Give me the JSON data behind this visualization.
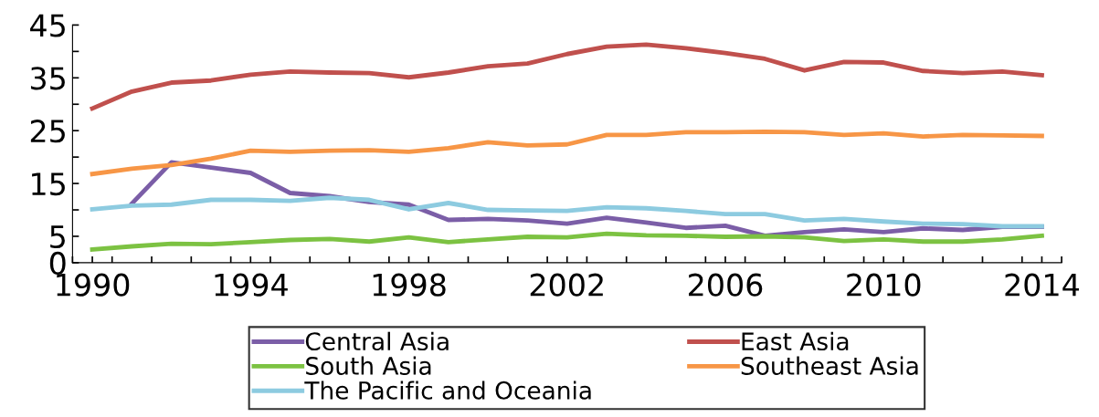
{
  "chart_data": {
    "type": "line",
    "x": [
      1990,
      1991,
      1992,
      1993,
      1994,
      1995,
      1996,
      1997,
      1998,
      1999,
      2000,
      2001,
      2002,
      2003,
      2004,
      2005,
      2006,
      2007,
      2008,
      2009,
      2010,
      2011,
      2012,
      2013,
      2014
    ],
    "series": [
      {
        "name": "Central Asia",
        "color": "#7b5ea7",
        "values": [
          null,
          11.2,
          19.0,
          18.0,
          17.0,
          13.2,
          12.6,
          11.5,
          11.0,
          8.1,
          8.3,
          8.0,
          7.4,
          8.5,
          7.6,
          6.6,
          7.0,
          5.1,
          5.8,
          6.3,
          5.8,
          6.5,
          6.2,
          6.8,
          6.8
        ]
      },
      {
        "name": "East Asia",
        "color": "#c0504d",
        "values": [
          29.2,
          32.4,
          34.1,
          34.5,
          35.6,
          36.2,
          36.0,
          35.9,
          35.1,
          36.0,
          37.2,
          37.7,
          39.5,
          40.9,
          41.3,
          40.6,
          39.7,
          38.6,
          36.4,
          38.0,
          37.9,
          36.3,
          35.9,
          36.2,
          35.5
        ]
      },
      {
        "name": "South Asia",
        "color": "#7cc242",
        "values": [
          2.5,
          3.1,
          3.6,
          3.5,
          3.9,
          4.3,
          4.5,
          4.0,
          4.8,
          3.9,
          4.4,
          4.9,
          4.8,
          5.5,
          5.2,
          5.1,
          4.9,
          5.0,
          4.8,
          4.1,
          4.4,
          4.0,
          4.0,
          4.4,
          5.1
        ]
      },
      {
        "name": "Southeast Asia",
        "color": "#f79646",
        "values": [
          16.8,
          17.8,
          18.5,
          19.7,
          21.2,
          21.0,
          21.2,
          21.3,
          21.0,
          21.7,
          22.8,
          22.2,
          22.4,
          24.2,
          24.2,
          24.7,
          24.7,
          24.8,
          24.7,
          24.2,
          24.5,
          23.9,
          24.2,
          24.1,
          24.0
        ]
      },
      {
        "name": "The Pacific and Oceania",
        "color": "#8dcbe0",
        "values": [
          10.1,
          10.8,
          11.0,
          11.9,
          11.9,
          11.7,
          12.3,
          11.9,
          10.1,
          11.3,
          10.0,
          9.9,
          9.8,
          10.5,
          10.3,
          9.8,
          9.2,
          9.2,
          8.0,
          8.3,
          7.8,
          7.4,
          7.3,
          6.9,
          6.9
        ]
      }
    ],
    "xlim": [
      1989.5,
      2014.5
    ],
    "xticks": [
      {
        "value": 1989.5,
        "label": null
      },
      1990,
      {
        "value": 1990.5,
        "label": null
      },
      {
        "value": 1991.5,
        "label": null
      },
      {
        "value": 1992.5,
        "label": null
      },
      {
        "value": 1993.5,
        "label": null
      },
      1994,
      {
        "value": 1994.5,
        "label": null
      },
      {
        "value": 1995.5,
        "label": null
      },
      {
        "value": 1996.5,
        "label": null
      },
      {
        "value": 1997.5,
        "label": null
      },
      1998,
      {
        "value": 1998.5,
        "label": null
      },
      {
        "value": 1999.5,
        "label": null
      },
      {
        "value": 2000.5,
        "label": null
      },
      {
        "value": 2001.5,
        "label": null
      },
      2002,
      {
        "value": 2002.5,
        "label": null
      },
      {
        "value": 2003.5,
        "label": null
      },
      {
        "value": 2004.5,
        "label": null
      },
      {
        "value": 2005.5,
        "label": null
      },
      2006,
      {
        "value": 2006.5,
        "label": null
      },
      {
        "value": 2007.5,
        "label": null
      },
      {
        "value": 2008.5,
        "label": null
      },
      {
        "value": 2009.5,
        "label": null
      },
      2010,
      {
        "value": 2010.5,
        "label": null
      },
      {
        "value": 2011.5,
        "label": null
      },
      {
        "value": 2012.5,
        "label": null
      },
      {
        "value": 2013.5,
        "label": null
      },
      2014,
      {
        "value": 2014.5,
        "label": null
      }
    ],
    "ylim": [
      0,
      45
    ],
    "yticks": [
      0,
      5,
      {
        "value": 10,
        "label": null
      },
      15,
      {
        "value": 20,
        "label": null
      },
      25,
      {
        "value": 30,
        "label": null
      },
      35,
      {
        "value": 40,
        "label": null
      },
      45
    ],
    "grid": false,
    "legend": "bottom",
    "marker": "none",
    "line_style": "solid"
  }
}
